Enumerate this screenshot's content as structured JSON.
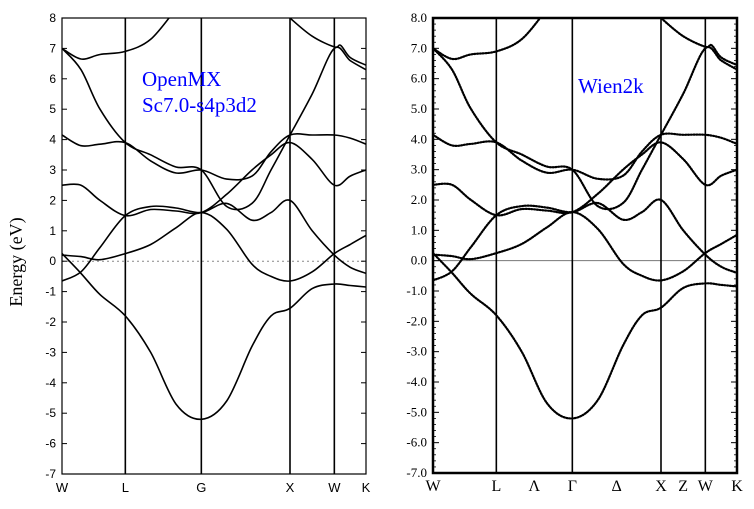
{
  "chart_data": [
    {
      "type": "line",
      "title": "",
      "ylabel": "Energy (eV)",
      "ylim": [
        -7,
        8
      ],
      "yticks": [
        "8",
        "7",
        "6",
        "5",
        "4",
        "3",
        "2",
        "1",
        "0",
        "-1",
        "-2",
        "-3",
        "-4",
        "-5",
        "-6",
        "-7"
      ],
      "kpoints": [
        {
          "label": "W",
          "x": 0
        },
        {
          "label": "L",
          "x": 1.0
        },
        {
          "label": "G",
          "x": 2.2
        },
        {
          "label": "X",
          "x": 3.6
        },
        {
          "label": "W",
          "x": 4.3
        },
        {
          "label": "K",
          "x": 4.8
        }
      ],
      "annotation": [
        "OpenMX",
        "Sc7.0-s4p3d2"
      ],
      "annotation_color": "#0000ff",
      "fermi_line": "dotted",
      "band_color": "#000000",
      "series": [
        {
          "values": [
            [
              0,
              0.25
            ],
            [
              0.3,
              -0.4
            ],
            [
              0.6,
              -1.1
            ],
            [
              1.0,
              -1.8
            ],
            [
              1.4,
              -3.0
            ],
            [
              1.8,
              -4.7
            ],
            [
              2.2,
              -5.2
            ],
            [
              2.6,
              -4.6
            ],
            [
              3.0,
              -2.8
            ],
            [
              3.3,
              -1.8
            ],
            [
              3.6,
              -1.55
            ],
            [
              3.95,
              -0.9
            ],
            [
              4.3,
              -0.75
            ],
            [
              4.55,
              -0.8
            ],
            [
              4.8,
              -0.85
            ]
          ]
        },
        {
          "values": [
            [
              0,
              0.2
            ],
            [
              0.3,
              0.15
            ],
            [
              0.6,
              0.05
            ],
            [
              1.0,
              0.25
            ],
            [
              1.4,
              0.55
            ],
            [
              1.8,
              1.1
            ],
            [
              2.2,
              1.6
            ],
            [
              2.6,
              1.05
            ],
            [
              3.0,
              -0.1
            ],
            [
              3.3,
              -0.5
            ],
            [
              3.6,
              -0.65
            ],
            [
              3.95,
              -0.35
            ],
            [
              4.3,
              0.25
            ],
            [
              4.55,
              0.55
            ],
            [
              4.8,
              0.85
            ]
          ]
        },
        {
          "values": [
            [
              0,
              -0.65
            ],
            [
              0.3,
              -0.35
            ],
            [
              0.6,
              0.45
            ],
            [
              1.0,
              1.5
            ],
            [
              1.4,
              1.8
            ],
            [
              1.8,
              1.75
            ],
            [
              2.2,
              1.6
            ],
            [
              2.6,
              1.9
            ],
            [
              3.0,
              1.35
            ],
            [
              3.3,
              1.6
            ],
            [
              3.6,
              2.0
            ],
            [
              3.95,
              1.0
            ],
            [
              4.3,
              0.2
            ],
            [
              4.55,
              -0.2
            ],
            [
              4.8,
              -0.4
            ]
          ]
        },
        {
          "values": [
            [
              0,
              2.5
            ],
            [
              0.3,
              2.5
            ],
            [
              0.6,
              2.0
            ],
            [
              1.0,
              1.5
            ],
            [
              1.4,
              1.7
            ],
            [
              1.8,
              1.65
            ],
            [
              2.2,
              1.6
            ],
            [
              2.6,
              2.2
            ],
            [
              3.0,
              3.0
            ],
            [
              3.3,
              3.5
            ],
            [
              3.6,
              3.9
            ],
            [
              3.95,
              3.35
            ],
            [
              4.3,
              2.5
            ],
            [
              4.55,
              2.8
            ],
            [
              4.8,
              3.0
            ]
          ]
        },
        {
          "values": [
            [
              0,
              4.15
            ],
            [
              0.3,
              3.8
            ],
            [
              0.6,
              3.85
            ],
            [
              1.0,
              3.9
            ],
            [
              1.4,
              3.3
            ],
            [
              1.8,
              2.9
            ],
            [
              2.2,
              3.0
            ],
            [
              2.6,
              2.7
            ],
            [
              3.0,
              2.8
            ],
            [
              3.3,
              3.6
            ],
            [
              3.6,
              4.15
            ],
            [
              3.95,
              4.15
            ],
            [
              4.3,
              4.15
            ],
            [
              4.55,
              4.05
            ],
            [
              4.8,
              3.85
            ]
          ]
        },
        {
          "values": [
            [
              0,
              7.0
            ],
            [
              0.3,
              6.65
            ],
            [
              0.6,
              6.8
            ],
            [
              1.0,
              6.9
            ],
            [
              1.4,
              7.3
            ],
            [
              1.8,
              8.3
            ]
          ]
        },
        {
          "values": [
            [
              0,
              7.0
            ],
            [
              0.3,
              6.3
            ],
            [
              0.6,
              5.0
            ],
            [
              1.0,
              3.9
            ],
            [
              1.4,
              3.5
            ],
            [
              1.8,
              3.1
            ],
            [
              2.2,
              3.0
            ],
            [
              2.6,
              1.8
            ],
            [
              3.0,
              1.9
            ],
            [
              3.3,
              3.0
            ],
            [
              3.6,
              4.15
            ],
            [
              3.95,
              5.5
            ],
            [
              4.3,
              7.0
            ],
            [
              4.55,
              6.6
            ],
            [
              4.8,
              6.3
            ]
          ]
        },
        {
          "values": [
            [
              3.45,
              8.3
            ],
            [
              3.6,
              8.0
            ],
            [
              3.95,
              7.4
            ],
            [
              4.3,
              7.05
            ],
            [
              4.4,
              7.1
            ],
            [
              4.55,
              6.7
            ],
            [
              4.8,
              6.45
            ]
          ]
        }
      ]
    },
    {
      "type": "line",
      "title": "",
      "ylabel": "",
      "ylim": [
        -7,
        8
      ],
      "yticks": [
        "8.0",
        "7.0",
        "6.0",
        "5.0",
        "4.0",
        "3.0",
        "2.0",
        "1.0",
        "0.0",
        "-1.0",
        "-2.0",
        "-3.0",
        "-4.0",
        "-5.0",
        "-6.0",
        "-7.0"
      ],
      "kpoints": [
        {
          "label": "W",
          "x": 0,
          "line": true
        },
        {
          "label": "L",
          "x": 1.0,
          "line": true
        },
        {
          "label": "Λ",
          "x": 1.6,
          "line": false
        },
        {
          "label": "Γ",
          "x": 2.2,
          "line": true
        },
        {
          "label": "Δ",
          "x": 2.9,
          "line": false
        },
        {
          "label": "X",
          "x": 3.6,
          "line": true
        },
        {
          "label": "Z",
          "x": 3.95,
          "line": false
        },
        {
          "label": "W",
          "x": 4.3,
          "line": true
        },
        {
          "label": "K",
          "x": 4.8,
          "line": true
        }
      ],
      "annotation": [
        "Wien2k"
      ],
      "annotation_color": "#0000ff",
      "fermi_line": "solid",
      "band_color": "#000000",
      "series": [
        {
          "values": [
            [
              0,
              0.25
            ],
            [
              0.3,
              -0.4
            ],
            [
              0.6,
              -1.1
            ],
            [
              1.0,
              -1.8
            ],
            [
              1.4,
              -3.0
            ],
            [
              1.8,
              -4.7
            ],
            [
              2.2,
              -5.2
            ],
            [
              2.6,
              -4.6
            ],
            [
              3.0,
              -2.8
            ],
            [
              3.3,
              -1.8
            ],
            [
              3.6,
              -1.55
            ],
            [
              3.95,
              -0.9
            ],
            [
              4.3,
              -0.75
            ],
            [
              4.55,
              -0.8
            ],
            [
              4.8,
              -0.85
            ]
          ]
        },
        {
          "values": [
            [
              0,
              0.2
            ],
            [
              0.3,
              0.15
            ],
            [
              0.6,
              0.05
            ],
            [
              1.0,
              0.25
            ],
            [
              1.4,
              0.55
            ],
            [
              1.8,
              1.1
            ],
            [
              2.2,
              1.6
            ],
            [
              2.6,
              1.05
            ],
            [
              3.0,
              -0.1
            ],
            [
              3.3,
              -0.5
            ],
            [
              3.6,
              -0.65
            ],
            [
              3.95,
              -0.35
            ],
            [
              4.3,
              0.25
            ],
            [
              4.55,
              0.55
            ],
            [
              4.8,
              0.85
            ]
          ]
        },
        {
          "values": [
            [
              0,
              -0.65
            ],
            [
              0.3,
              -0.35
            ],
            [
              0.6,
              0.45
            ],
            [
              1.0,
              1.5
            ],
            [
              1.4,
              1.8
            ],
            [
              1.8,
              1.75
            ],
            [
              2.2,
              1.6
            ],
            [
              2.6,
              1.9
            ],
            [
              3.0,
              1.35
            ],
            [
              3.3,
              1.6
            ],
            [
              3.6,
              2.0
            ],
            [
              3.95,
              1.0
            ],
            [
              4.3,
              0.2
            ],
            [
              4.55,
              -0.2
            ],
            [
              4.8,
              -0.4
            ]
          ]
        },
        {
          "values": [
            [
              0,
              2.5
            ],
            [
              0.3,
              2.5
            ],
            [
              0.6,
              2.0
            ],
            [
              1.0,
              1.5
            ],
            [
              1.4,
              1.7
            ],
            [
              1.8,
              1.65
            ],
            [
              2.2,
              1.6
            ],
            [
              2.6,
              2.2
            ],
            [
              3.0,
              3.0
            ],
            [
              3.3,
              3.5
            ],
            [
              3.6,
              3.9
            ],
            [
              3.95,
              3.35
            ],
            [
              4.3,
              2.5
            ],
            [
              4.55,
              2.8
            ],
            [
              4.8,
              3.0
            ]
          ]
        },
        {
          "values": [
            [
              0,
              4.15
            ],
            [
              0.3,
              3.8
            ],
            [
              0.6,
              3.85
            ],
            [
              1.0,
              3.9
            ],
            [
              1.4,
              3.3
            ],
            [
              1.8,
              2.9
            ],
            [
              2.2,
              3.0
            ],
            [
              2.6,
              2.7
            ],
            [
              3.0,
              2.8
            ],
            [
              3.3,
              3.6
            ],
            [
              3.6,
              4.15
            ],
            [
              3.95,
              4.15
            ],
            [
              4.3,
              4.15
            ],
            [
              4.55,
              4.05
            ],
            [
              4.8,
              3.85
            ]
          ]
        },
        {
          "values": [
            [
              0,
              7.0
            ],
            [
              0.3,
              6.65
            ],
            [
              0.6,
              6.8
            ],
            [
              1.0,
              6.9
            ],
            [
              1.4,
              7.3
            ],
            [
              1.8,
              8.3
            ]
          ]
        },
        {
          "values": [
            [
              0,
              7.0
            ],
            [
              0.3,
              6.3
            ],
            [
              0.6,
              5.0
            ],
            [
              1.0,
              3.9
            ],
            [
              1.4,
              3.5
            ],
            [
              1.8,
              3.1
            ],
            [
              2.2,
              3.0
            ],
            [
              2.6,
              1.8
            ],
            [
              3.0,
              1.9
            ],
            [
              3.3,
              3.0
            ],
            [
              3.6,
              4.15
            ],
            [
              3.95,
              5.5
            ],
            [
              4.3,
              7.0
            ],
            [
              4.55,
              6.6
            ],
            [
              4.8,
              6.3
            ]
          ]
        },
        {
          "values": [
            [
              3.45,
              8.3
            ],
            [
              3.6,
              8.0
            ],
            [
              3.95,
              7.4
            ],
            [
              4.3,
              7.05
            ],
            [
              4.4,
              7.1
            ],
            [
              4.55,
              6.7
            ],
            [
              4.8,
              6.45
            ]
          ]
        }
      ]
    }
  ]
}
